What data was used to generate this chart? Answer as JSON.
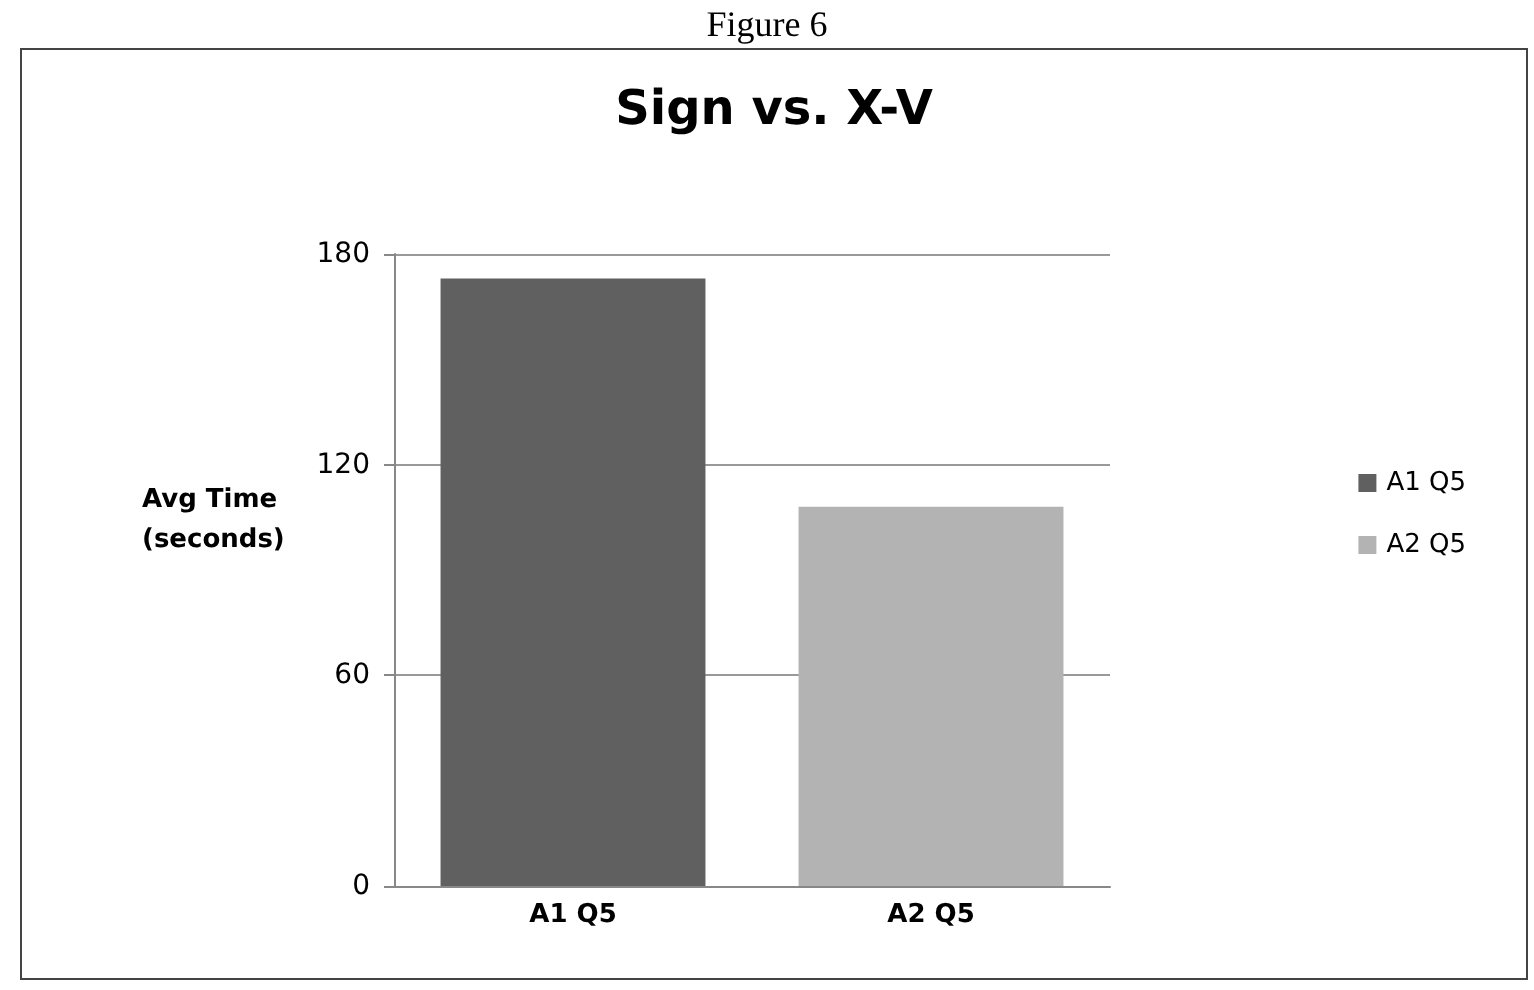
{
  "chart_data": {
    "type": "bar",
    "title": "Sign vs. X-V",
    "ylabel": "Avg Time (seconds)",
    "annotations": [
      "Figure 6"
    ],
    "categories": [
      "A1 Q5",
      "A2 Q5"
    ],
    "series": [
      {
        "name": "A1 Q5",
        "color": "#606060",
        "values": [
          173,
          null
        ]
      },
      {
        "name": "A2 Q5",
        "color": "#b3b3b3",
        "values": [
          null,
          108
        ]
      }
    ],
    "stacked": true,
    "ylim": [
      0,
      180
    ],
    "yticks": [
      0,
      60,
      120,
      180
    ],
    "grid": "y",
    "legend": "right"
  }
}
